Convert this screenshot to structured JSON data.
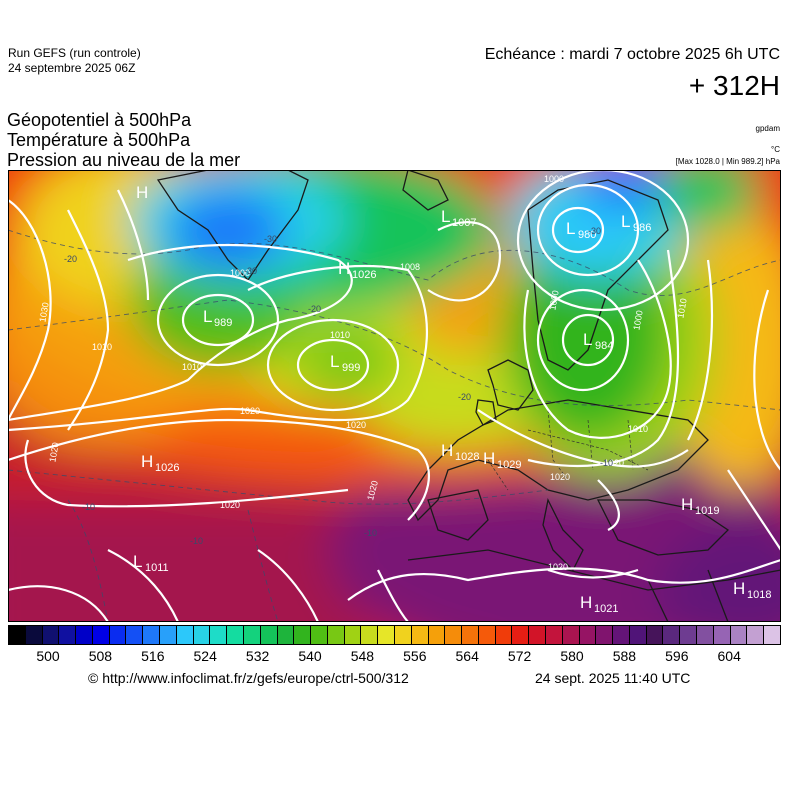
{
  "header": {
    "run_label": "Run GEFS (run controle)",
    "run_date": "24 septembre 2025 06Z",
    "valid_time": "Echéance : mardi 7 octobre 2025 6h UTC",
    "lead_time": "+ 312H"
  },
  "fields": {
    "titles": [
      "Géopotentiel à 500hPa",
      "Température à 500hPa",
      "Pression au niveau de la mer"
    ],
    "units": [
      "gpdam",
      "°C",
      "[Max 1028.0 | Min 989.2] hPa"
    ]
  },
  "pressure_centers": [
    {
      "type": "H",
      "value": ""
    },
    {
      "type": "L",
      "value": "989"
    },
    {
      "type": "H",
      "value": "1026"
    },
    {
      "type": "L",
      "value": "999"
    },
    {
      "type": "L",
      "value": "1007"
    },
    {
      "type": "L",
      "value": "980"
    },
    {
      "type": "L",
      "value": "986"
    },
    {
      "type": "L",
      "value": "984"
    },
    {
      "type": "H",
      "value": "1028"
    },
    {
      "type": "H",
      "value": "1029"
    },
    {
      "type": "H",
      "value": "1019"
    },
    {
      "type": "L",
      "value": "1011"
    },
    {
      "type": "H",
      "value": "1021"
    },
    {
      "type": "H",
      "value": "1018"
    },
    {
      "type": "H",
      "value": "1026"
    }
  ],
  "isobar_labels": [
    "1000",
    "1010",
    "1020",
    "1030",
    "1008",
    "1010",
    "1020",
    "1020",
    "1020",
    "1020",
    "1000",
    "1000",
    "1010",
    "1010",
    "1010",
    "1020",
    "1020",
    "1000",
    "1020"
  ],
  "isotherm_labels": [
    "-20",
    "-20",
    "-20",
    "-30",
    "-10",
    "-10",
    "-10",
    "-10",
    "-30",
    "-30"
  ],
  "colorbar": {
    "colors": [
      "#000000",
      "#0a0a3c",
      "#101070",
      "#1010a0",
      "#0000c8",
      "#0000e6",
      "#0a2cf0",
      "#1450f5",
      "#1e78fa",
      "#28a0fa",
      "#2cc8fa",
      "#28d2e6",
      "#1edcc8",
      "#14dca0",
      "#14d27d",
      "#14c35a",
      "#1eb43c",
      "#32b41e",
      "#50be14",
      "#78c814",
      "#a0d214",
      "#c8dc1e",
      "#e6e628",
      "#f0d21e",
      "#f5b914",
      "#f5a00a",
      "#f58c0a",
      "#f5730a",
      "#f55a0a",
      "#f03c0a",
      "#e61e14",
      "#d21428",
      "#c3143c",
      "#aa1450",
      "#961464",
      "#80146e",
      "#641478",
      "#501478",
      "#46145a",
      "#5a287d",
      "#6e3c91",
      "#8250a0",
      "#9664b4",
      "#aa82c3",
      "#c3a0d2",
      "#dcc3e6"
    ],
    "tick_labels": [
      "500",
      "508",
      "516",
      "524",
      "532",
      "540",
      "548",
      "556",
      "564",
      "572",
      "580",
      "588",
      "596",
      "604"
    ]
  },
  "footer": {
    "url": "© http://www.infoclimat.fr/z/gefs/europe/ctrl-500/312",
    "issued": "24 sept. 2025 11:40 UTC"
  }
}
